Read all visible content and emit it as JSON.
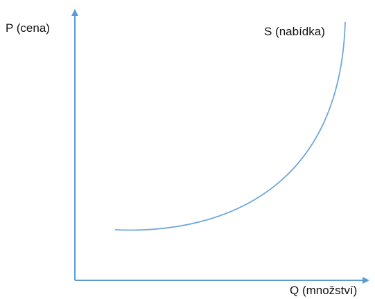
{
  "diagram": {
    "y_axis_label": "P (cena)",
    "x_axis_label": "Q (množství)",
    "curve_label": "S (nabídka)",
    "colors": {
      "axis": "#5b9bd5",
      "curve": "#6fa8dc",
      "text": "#111111"
    }
  }
}
